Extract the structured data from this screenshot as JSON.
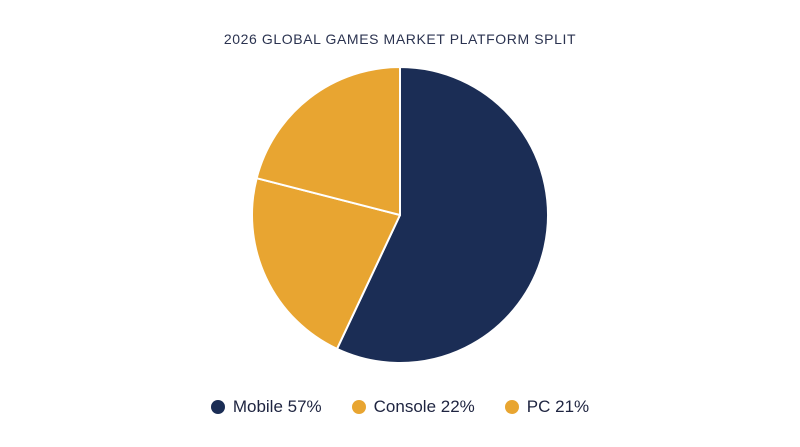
{
  "chart_data": {
    "type": "pie",
    "title": "2026 GLOBAL GAMES MARKET PLATFORM SPLIT",
    "slices": [
      {
        "label": "Mobile",
        "value": 57,
        "display": "Mobile 57%",
        "color": "#1b2d55"
      },
      {
        "label": "Console",
        "value": 22,
        "display": "Console 22%",
        "color": "#e8a531"
      },
      {
        "label": "PC",
        "value": 21,
        "display": "PC 21%",
        "color": "#e8a531"
      }
    ],
    "legend_position": "bottom"
  }
}
